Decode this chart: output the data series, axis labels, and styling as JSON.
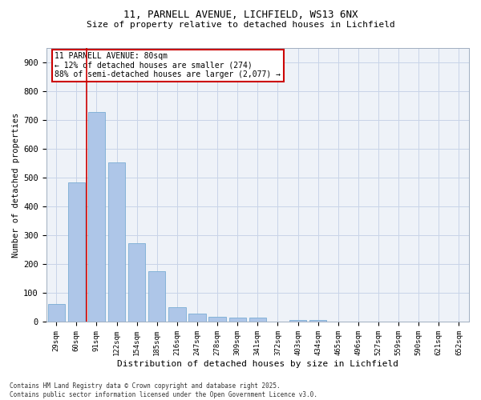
{
  "title_line1": "11, PARNELL AVENUE, LICHFIELD, WS13 6NX",
  "title_line2": "Size of property relative to detached houses in Lichfield",
  "xlabel": "Distribution of detached houses by size in Lichfield",
  "ylabel": "Number of detached properties",
  "categories": [
    "29sqm",
    "60sqm",
    "91sqm",
    "122sqm",
    "154sqm",
    "185sqm",
    "216sqm",
    "247sqm",
    "278sqm",
    "309sqm",
    "341sqm",
    "372sqm",
    "403sqm",
    "434sqm",
    "465sqm",
    "496sqm",
    "527sqm",
    "559sqm",
    "590sqm",
    "621sqm",
    "652sqm"
  ],
  "values": [
    62,
    484,
    728,
    554,
    272,
    176,
    50,
    30,
    18,
    14,
    14,
    0,
    7,
    7,
    0,
    0,
    0,
    0,
    0,
    0,
    0
  ],
  "bar_color": "#aec6e8",
  "bar_edgecolor": "#7aadd4",
  "annotation_title": "11 PARNELL AVENUE: 80sqm",
  "annotation_line2": "← 12% of detached houses are smaller (274)",
  "annotation_line3": "88% of semi-detached houses are larger (2,077) →",
  "annotation_box_color": "#cc0000",
  "vline_color": "#cc0000",
  "grid_color": "#c8d4e8",
  "background_color": "#eef2f8",
  "ylim": [
    0,
    950
  ],
  "yticks": [
    0,
    100,
    200,
    300,
    400,
    500,
    600,
    700,
    800,
    900
  ],
  "footnote_line1": "Contains HM Land Registry data © Crown copyright and database right 2025.",
  "footnote_line2": "Contains public sector information licensed under the Open Government Licence v3.0."
}
